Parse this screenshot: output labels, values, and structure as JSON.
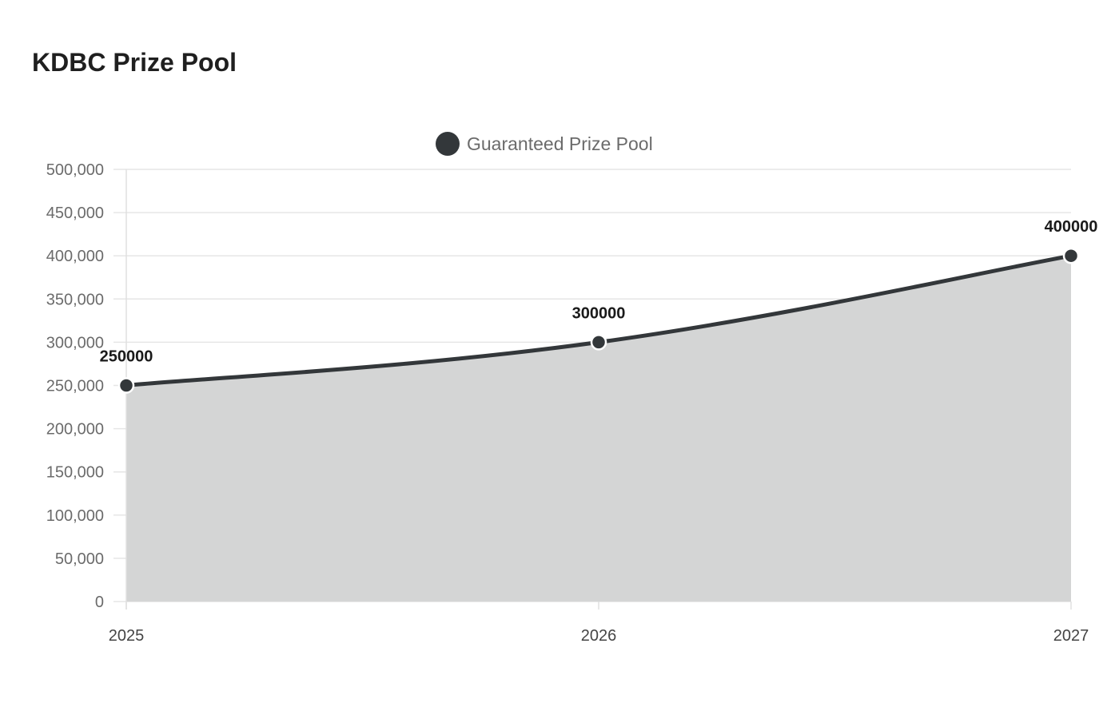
{
  "chart_data": {
    "type": "area",
    "title": "KDBC Prize Pool",
    "categories": [
      "2025",
      "2026",
      "2027"
    ],
    "series": [
      {
        "name": "Guaranteed Prize Pool",
        "values": [
          250000,
          300000,
          400000
        ],
        "data_labels": [
          "250000",
          "300000",
          "400000"
        ]
      }
    ],
    "ylim": [
      0,
      500000
    ],
    "y_ticks": [
      0,
      50000,
      100000,
      150000,
      200000,
      250000,
      300000,
      350000,
      400000,
      450000,
      500000
    ],
    "y_tick_labels": [
      "0",
      "50,000",
      "100,000",
      "150,000",
      "200,000",
      "250,000",
      "300,000",
      "350,000",
      "400,000",
      "450,000",
      "500,000"
    ],
    "xlabel": "",
    "ylabel": "",
    "grid": true,
    "legend": "top-center",
    "colors": {
      "line": "#33373a",
      "fill": "#d4d5d5",
      "marker": "#33373a",
      "marker_stroke": "#ffffff",
      "grid": "#e6e6e6"
    }
  }
}
